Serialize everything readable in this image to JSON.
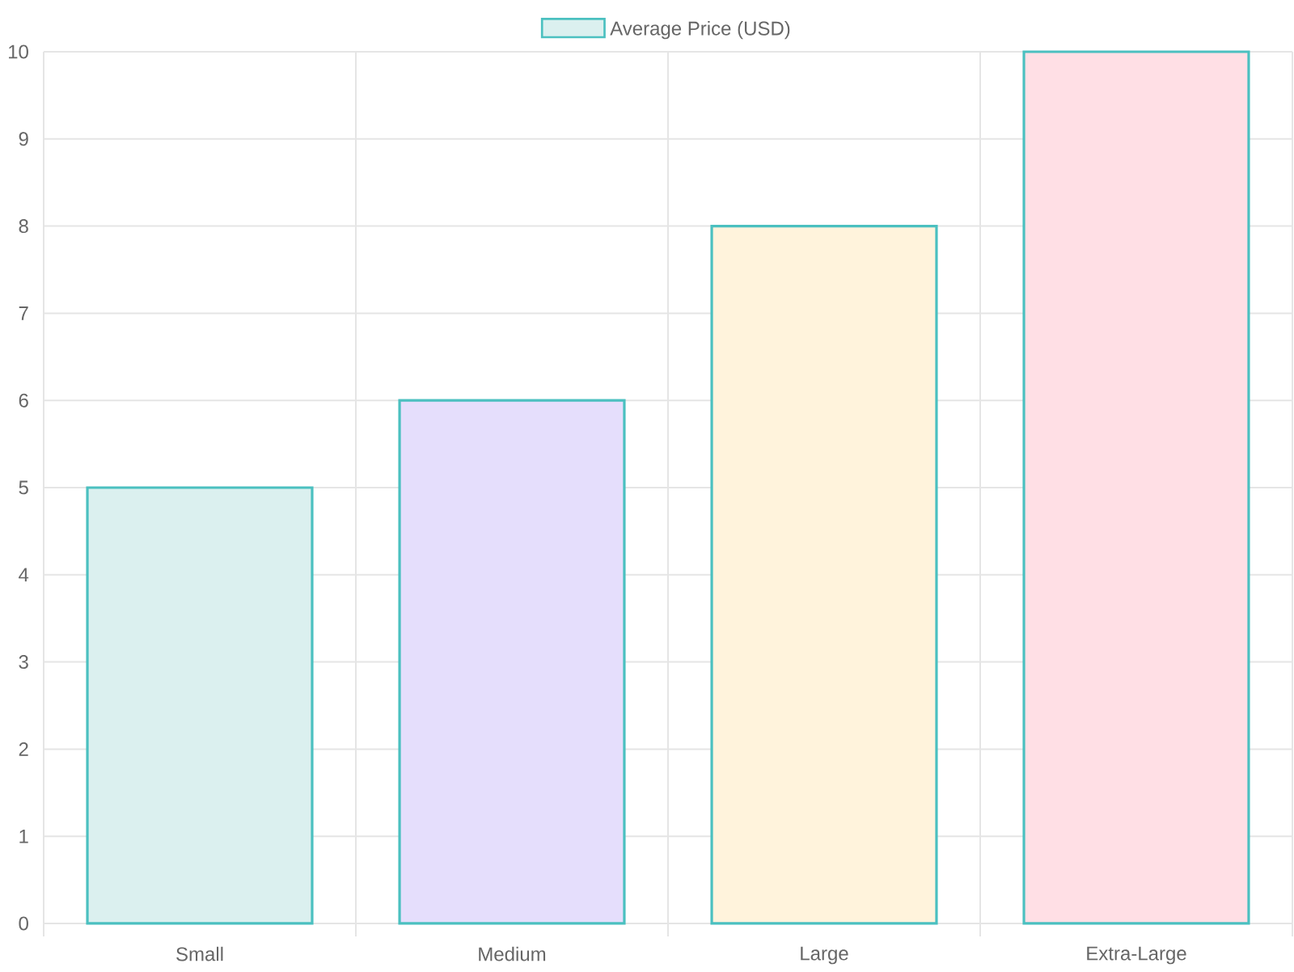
{
  "chart_data": {
    "type": "bar",
    "categories": [
      "Small",
      "Medium",
      "Large",
      "Extra-Large"
    ],
    "series": [
      {
        "name": "Average Price (USD)",
        "color": "#4bc0c0",
        "colors": [
          "#dbf0ef",
          "#e5defc",
          "#fff3dc",
          "#ffdfe5"
        ],
        "values": [
          5,
          6,
          8,
          10
        ]
      }
    ],
    "ylim": [
      0,
      10
    ],
    "yticks": [
      0,
      1,
      2,
      3,
      4,
      5,
      6,
      7,
      8,
      9,
      10
    ],
    "grid": true,
    "legend": "top"
  }
}
